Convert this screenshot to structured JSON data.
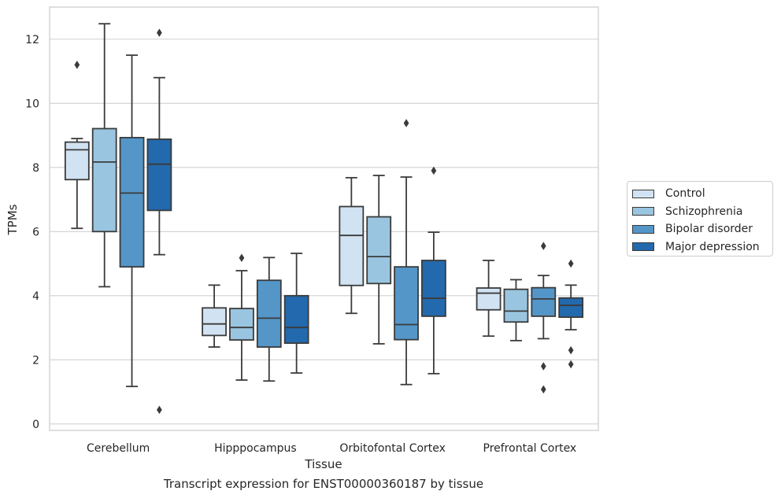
{
  "chart_data": {
    "type": "boxplot",
    "title": "",
    "caption": "Transcript expression for ENST00000360187 by tissue",
    "xlabel": "Tissue",
    "ylabel": "TPMs",
    "ylim": [
      -0.2,
      13.0
    ],
    "yticks": [
      0,
      2,
      4,
      6,
      8,
      10,
      12
    ],
    "grid": "horizontal",
    "legend_position": "right",
    "categories": [
      "Cerebellum",
      "Hipppocampus",
      "Orbitofontal Cortex",
      "Prefrontal Cortex"
    ],
    "series": [
      {
        "name": "Control",
        "color": "#d1e2f2",
        "boxes": [
          {
            "q1": 7.62,
            "median": 8.55,
            "q3": 8.79,
            "whisker_low": 6.1,
            "whisker_high": 8.9,
            "outliers": [
              11.2
            ]
          },
          {
            "q1": 2.76,
            "median": 3.12,
            "q3": 3.62,
            "whisker_low": 2.4,
            "whisker_high": 4.33,
            "outliers": []
          },
          {
            "q1": 4.32,
            "median": 5.88,
            "q3": 6.78,
            "whisker_low": 3.45,
            "whisker_high": 7.68,
            "outliers": []
          },
          {
            "q1": 3.56,
            "median": 4.08,
            "q3": 4.24,
            "whisker_low": 2.74,
            "whisker_high": 5.1,
            "outliers": []
          }
        ]
      },
      {
        "name": "Schizophrenia",
        "color": "#9ac5e0",
        "boxes": [
          {
            "q1": 6.0,
            "median": 8.17,
            "q3": 9.21,
            "whisker_low": 4.28,
            "whisker_high": 12.48,
            "outliers": []
          },
          {
            "q1": 2.62,
            "median": 3.01,
            "q3": 3.6,
            "whisker_low": 1.37,
            "whisker_high": 4.78,
            "outliers": [
              5.18
            ]
          },
          {
            "q1": 4.38,
            "median": 5.22,
            "q3": 6.46,
            "whisker_low": 2.5,
            "whisker_high": 7.75,
            "outliers": []
          },
          {
            "q1": 3.18,
            "median": 3.52,
            "q3": 4.2,
            "whisker_low": 2.6,
            "whisker_high": 4.5,
            "outliers": []
          }
        ]
      },
      {
        "name": "Bipolar disorder",
        "color": "#5496c8",
        "boxes": [
          {
            "q1": 4.9,
            "median": 7.2,
            "q3": 8.93,
            "whisker_low": 1.17,
            "whisker_high": 11.5,
            "outliers": []
          },
          {
            "q1": 2.4,
            "median": 3.3,
            "q3": 4.48,
            "whisker_low": 1.34,
            "whisker_high": 5.19,
            "outliers": []
          },
          {
            "q1": 2.63,
            "median": 3.1,
            "q3": 4.9,
            "whisker_low": 1.23,
            "whisker_high": 7.7,
            "outliers": [
              9.38
            ]
          },
          {
            "q1": 3.36,
            "median": 3.9,
            "q3": 4.25,
            "whisker_low": 2.66,
            "whisker_high": 4.63,
            "outliers": [
              5.55,
              1.8,
              1.08
            ]
          }
        ]
      },
      {
        "name": "Major depression",
        "color": "#2369ad",
        "boxes": [
          {
            "q1": 6.66,
            "median": 8.1,
            "q3": 8.88,
            "whisker_low": 5.28,
            "whisker_high": 10.8,
            "outliers": [
              12.2,
              0.44
            ]
          },
          {
            "q1": 2.52,
            "median": 3.01,
            "q3": 4.0,
            "whisker_low": 1.59,
            "whisker_high": 5.32,
            "outliers": []
          },
          {
            "q1": 3.36,
            "median": 3.92,
            "q3": 5.1,
            "whisker_low": 1.57,
            "whisker_high": 5.98,
            "outliers": [
              7.9
            ]
          },
          {
            "q1": 3.33,
            "median": 3.7,
            "q3": 3.93,
            "whisker_low": 2.94,
            "whisker_high": 4.33,
            "outliers": [
              5.0,
              2.3,
              1.86
            ]
          }
        ]
      }
    ]
  }
}
